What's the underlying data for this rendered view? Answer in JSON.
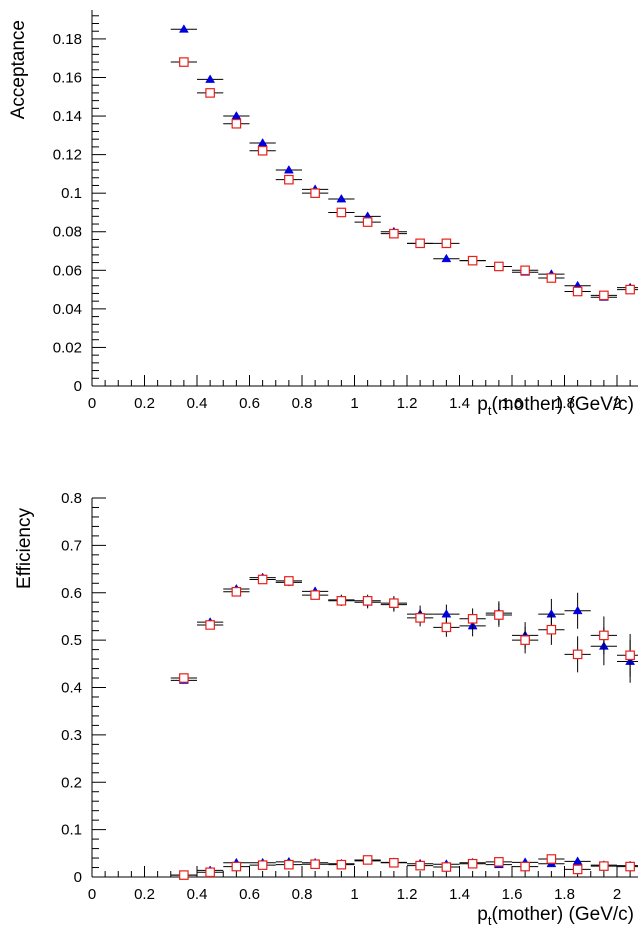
{
  "chart_data": [
    {
      "type": "scatter",
      "xlabel_main": "p",
      "xlabel_sub": "t",
      "xlabel_rest": "(mother) (GeV/c)",
      "ylabel": "Acceptance",
      "xlim": [
        0,
        2.08
      ],
      "ylim": [
        0,
        0.195
      ],
      "xticks": [
        "0",
        "0.2",
        "0.4",
        "0.6",
        "0.8",
        "1",
        "1.2",
        "1.4",
        "1.6",
        "1.8",
        "2"
      ],
      "yticks": [
        "0",
        "0.02",
        "0.04",
        "0.06",
        "0.08",
        "0.1",
        "0.12",
        "0.14",
        "0.16",
        "0.18"
      ],
      "x_err": 0.05,
      "series": [
        {
          "marker": "triangle-filled",
          "color": "#0000dd",
          "points": [
            [
              0.35,
              0.185,
              0.0
            ],
            [
              0.45,
              0.159,
              0.0
            ],
            [
              0.55,
              0.14,
              0.0
            ],
            [
              0.65,
              0.126,
              0.0
            ],
            [
              0.75,
              0.112,
              0.0
            ],
            [
              0.85,
              0.102,
              0.0
            ],
            [
              0.95,
              0.097,
              0.0
            ],
            [
              1.05,
              0.088,
              0.0
            ],
            [
              1.15,
              0.08,
              0.0
            ],
            [
              1.25,
              0.074,
              0.0
            ],
            [
              1.35,
              0.066,
              0.0
            ],
            [
              1.45,
              0.065,
              0.0
            ],
            [
              1.55,
              0.062,
              0.0
            ],
            [
              1.65,
              0.059,
              0.0
            ],
            [
              1.75,
              0.058,
              0.0
            ],
            [
              1.85,
              0.052,
              0.0
            ],
            [
              1.95,
              0.046,
              0.0
            ],
            [
              2.05,
              0.051,
              0.002
            ]
          ]
        },
        {
          "marker": "square-open",
          "color": "#e8201c",
          "points": [
            [
              0.35,
              0.168,
              0.0
            ],
            [
              0.45,
              0.152,
              0.0
            ],
            [
              0.55,
              0.136,
              0.0
            ],
            [
              0.65,
              0.122,
              0.0
            ],
            [
              0.75,
              0.107,
              0.0
            ],
            [
              0.85,
              0.1,
              0.0
            ],
            [
              0.95,
              0.09,
              0.0
            ],
            [
              1.05,
              0.085,
              0.0
            ],
            [
              1.15,
              0.079,
              0.0
            ],
            [
              1.25,
              0.074,
              0.0
            ],
            [
              1.35,
              0.074,
              0.0
            ],
            [
              1.45,
              0.065,
              0.0
            ],
            [
              1.55,
              0.062,
              0.0
            ],
            [
              1.65,
              0.06,
              0.0
            ],
            [
              1.75,
              0.056,
              0.0
            ],
            [
              1.85,
              0.049,
              0.0
            ],
            [
              1.95,
              0.047,
              0.0
            ],
            [
              2.05,
              0.05,
              0.002
            ]
          ]
        }
      ]
    },
    {
      "type": "scatter",
      "xlabel_main": "p",
      "xlabel_sub": "t",
      "xlabel_rest": "(mother) (GeV/c)",
      "ylabel": "Efficiency",
      "xlim": [
        0,
        2.08
      ],
      "ylim": [
        0,
        0.8
      ],
      "xticks": [
        "0",
        "0.2",
        "0.4",
        "0.6",
        "0.8",
        "1",
        "1.2",
        "1.4",
        "1.6",
        "1.8",
        "2"
      ],
      "yticks": [
        "0",
        "0.1",
        "0.2",
        "0.3",
        "0.4",
        "0.5",
        "0.6",
        "0.7",
        "0.8"
      ],
      "x_err": 0.05,
      "series": [
        {
          "marker": "triangle-filled",
          "color": "#0000dd",
          "points": [
            [
              0.35,
              0.415,
              0.006
            ],
            [
              0.45,
              0.538,
              0.006
            ],
            [
              0.55,
              0.608,
              0.007
            ],
            [
              0.65,
              0.632,
              0.008
            ],
            [
              0.75,
              0.622,
              0.008
            ],
            [
              0.85,
              0.603,
              0.009
            ],
            [
              0.95,
              0.585,
              0.011
            ],
            [
              1.05,
              0.58,
              0.013
            ],
            [
              1.15,
              0.575,
              0.015
            ],
            [
              1.25,
              0.555,
              0.018
            ],
            [
              1.35,
              0.555,
              0.02
            ],
            [
              1.45,
              0.53,
              0.022
            ],
            [
              1.55,
              0.557,
              0.025
            ],
            [
              1.65,
              0.51,
              0.028
            ],
            [
              1.75,
              0.555,
              0.032
            ],
            [
              1.85,
              0.562,
              0.038
            ],
            [
              1.95,
              0.487,
              0.04
            ],
            [
              2.05,
              0.455,
              0.045
            ]
          ]
        },
        {
          "marker": "square-open",
          "color": "#e8201c",
          "points": [
            [
              0.35,
              0.42,
              0.006
            ],
            [
              0.45,
              0.532,
              0.006
            ],
            [
              0.55,
              0.602,
              0.007
            ],
            [
              0.65,
              0.628,
              0.008
            ],
            [
              0.75,
              0.625,
              0.008
            ],
            [
              0.85,
              0.595,
              0.009
            ],
            [
              0.95,
              0.583,
              0.011
            ],
            [
              1.05,
              0.583,
              0.013
            ],
            [
              1.15,
              0.578,
              0.015
            ],
            [
              1.25,
              0.547,
              0.018
            ],
            [
              1.35,
              0.527,
              0.02
            ],
            [
              1.45,
              0.545,
              0.022
            ],
            [
              1.55,
              0.553,
              0.025
            ],
            [
              1.65,
              0.5,
              0.028
            ],
            [
              1.75,
              0.522,
              0.032
            ],
            [
              1.85,
              0.47,
              0.038
            ],
            [
              1.95,
              0.51,
              0.04
            ],
            [
              2.05,
              0.468,
              0.045
            ]
          ]
        },
        {
          "marker": "triangle-filled",
          "color": "#0000dd",
          "points": [
            [
              0.35,
              0.004,
              0.002
            ],
            [
              0.45,
              0.014,
              0.003
            ],
            [
              0.55,
              0.03,
              0.004
            ],
            [
              0.65,
              0.03,
              0.004
            ],
            [
              0.75,
              0.032,
              0.004
            ],
            [
              0.85,
              0.03,
              0.004
            ],
            [
              0.95,
              0.028,
              0.004
            ],
            [
              1.05,
              0.034,
              0.005
            ],
            [
              1.15,
              0.031,
              0.005
            ],
            [
              1.25,
              0.028,
              0.005
            ],
            [
              1.35,
              0.027,
              0.005
            ],
            [
              1.45,
              0.03,
              0.006
            ],
            [
              1.55,
              0.026,
              0.006
            ],
            [
              1.65,
              0.031,
              0.007
            ],
            [
              1.75,
              0.028,
              0.007
            ],
            [
              1.85,
              0.033,
              0.008
            ],
            [
              1.95,
              0.025,
              0.008
            ],
            [
              2.05,
              0.024,
              0.008
            ]
          ]
        },
        {
          "marker": "square-open",
          "color": "#e8201c",
          "points": [
            [
              0.35,
              0.004,
              0.002
            ],
            [
              0.45,
              0.01,
              0.003
            ],
            [
              0.55,
              0.022,
              0.004
            ],
            [
              0.65,
              0.025,
              0.004
            ],
            [
              0.75,
              0.026,
              0.004
            ],
            [
              0.85,
              0.027,
              0.004
            ],
            [
              0.95,
              0.026,
              0.004
            ],
            [
              1.05,
              0.036,
              0.005
            ],
            [
              1.15,
              0.03,
              0.005
            ],
            [
              1.25,
              0.024,
              0.005
            ],
            [
              1.35,
              0.021,
              0.005
            ],
            [
              1.45,
              0.028,
              0.006
            ],
            [
              1.55,
              0.032,
              0.006
            ],
            [
              1.65,
              0.022,
              0.007
            ],
            [
              1.75,
              0.038,
              0.007
            ],
            [
              1.85,
              0.016,
              0.008
            ],
            [
              1.95,
              0.023,
              0.008
            ],
            [
              2.05,
              0.022,
              0.008
            ]
          ]
        }
      ]
    }
  ]
}
